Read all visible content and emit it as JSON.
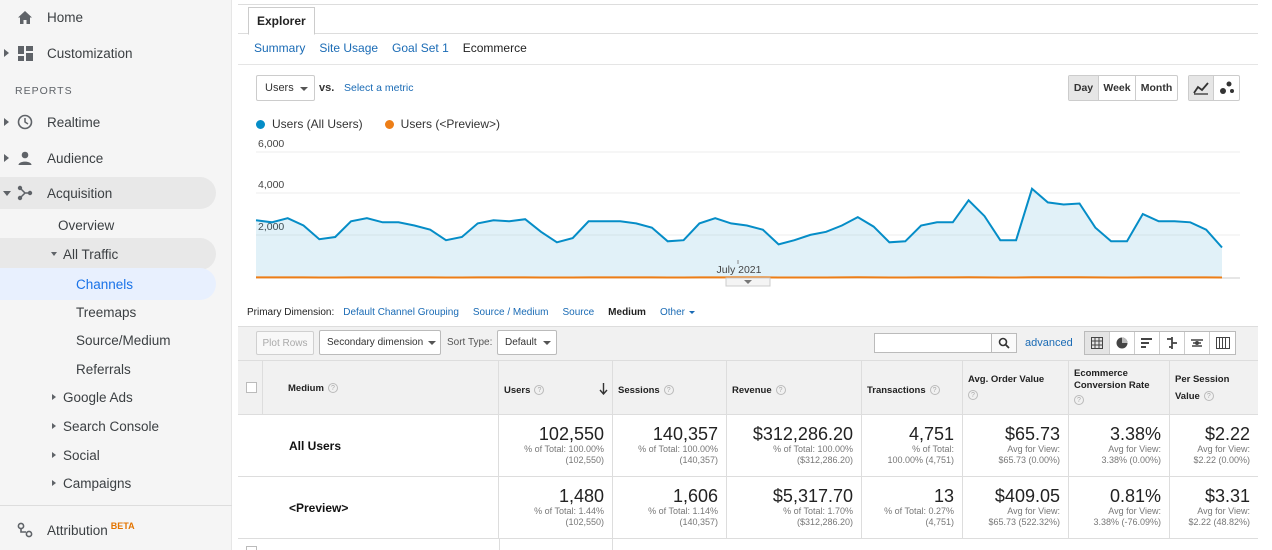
{
  "sidebar": {
    "home": "Home",
    "customization": "Customization",
    "reports_header": "REPORTS",
    "realtime": "Realtime",
    "audience": "Audience",
    "acquisition": "Acquisition",
    "overview": "Overview",
    "all_traffic": "All Traffic",
    "channels": "Channels",
    "treemaps": "Treemaps",
    "source_medium": "Source/Medium",
    "referrals": "Referrals",
    "google_ads": "Google Ads",
    "search_console": "Search Console",
    "social": "Social",
    "campaigns": "Campaigns",
    "attribution": "Attribution",
    "attribution_badge": "BETA"
  },
  "tabs": {
    "explorer": "Explorer",
    "subtabs": [
      "Summary",
      "Site Usage",
      "Goal Set 1",
      "Ecommerce"
    ]
  },
  "chart_controls": {
    "metric": "Users",
    "vs": "vs.",
    "select_metric": "Select a metric",
    "ranges": [
      "Day",
      "Week",
      "Month"
    ]
  },
  "chart_data": {
    "type": "line",
    "series": [
      {
        "name": "Users (All Users)",
        "color": "#058dc7",
        "values": [
          2750,
          2650,
          2850,
          2500,
          1850,
          1950,
          2700,
          2850,
          2650,
          2650,
          2500,
          2300,
          1800,
          1950,
          2600,
          2750,
          2700,
          2800,
          2200,
          1700,
          1900,
          2700,
          2700,
          2700,
          2600,
          2400,
          1750,
          1800,
          2600,
          2850,
          2600,
          2500,
          2300,
          1600,
          1800,
          2050,
          2200,
          2500,
          2900,
          2450,
          1700,
          1750,
          2500,
          2650,
          2650,
          3700,
          2950,
          1800,
          1800,
          4250,
          3600,
          3500,
          3550,
          2400,
          1750,
          1750,
          3050,
          2700,
          2700,
          2650,
          2300,
          1450
        ]
      },
      {
        "name": "Users (<Preview>)",
        "color": "#ed7e17",
        "values": [
          30,
          30,
          30,
          30,
          25,
          25,
          30,
          30,
          30,
          30,
          30,
          30,
          25,
          25,
          30,
          30,
          30,
          30,
          25,
          25,
          25,
          30,
          30,
          30,
          30,
          30,
          25,
          25,
          30,
          30,
          30,
          30,
          30,
          25,
          25,
          25,
          25,
          30,
          35,
          30,
          25,
          25,
          30,
          30,
          30,
          35,
          30,
          25,
          25,
          40,
          35,
          35,
          35,
          30,
          25,
          25,
          30,
          30,
          30,
          30,
          30,
          25
        ]
      }
    ],
    "y_ticks": [
      "6,000",
      "4,000",
      "2,000"
    ],
    "ylim": [
      0,
      6000
    ],
    "x_label": "July 2021"
  },
  "primary_dimension": {
    "label": "Primary Dimension:",
    "options": [
      "Default Channel Grouping",
      "Source / Medium",
      "Source"
    ],
    "current": "Medium",
    "other": "Other"
  },
  "table_toolbar": {
    "plot_rows": "Plot Rows",
    "secondary_dimension": "Secondary dimension",
    "sort_type_label": "Sort Type:",
    "sort_type": "Default",
    "search_value": "",
    "advanced": "advanced"
  },
  "table": {
    "headers": {
      "medium": "Medium",
      "users": "Users",
      "sessions": "Sessions",
      "revenue": "Revenue",
      "transactions": "Transactions",
      "aov": "Avg. Order Value",
      "ecr_1": "Ecommerce",
      "ecr_2": "Conversion Rate",
      "psv_1": "Per Session",
      "psv_2": "Value"
    },
    "rows": [
      {
        "name": "All Users",
        "users": {
          "value": "102,550",
          "s1": "% of Total: 100.00%",
          "s2": "(102,550)"
        },
        "sessions": {
          "value": "140,357",
          "s1": "% of Total: 100.00%",
          "s2": "(140,357)"
        },
        "revenue": {
          "value": "$312,286.20",
          "s1": "% of Total: 100.00%",
          "s2": "($312,286.20)"
        },
        "transactions": {
          "value": "4,751",
          "s1": "% of Total:",
          "s2": "100.00% (4,751)"
        },
        "aov": {
          "value": "$65.73",
          "s1": "Avg for View:",
          "s2": "$65.73 (0.00%)"
        },
        "ecr": {
          "value": "3.38%",
          "s1": "Avg for View:",
          "s2": "3.38% (0.00%)"
        },
        "psv": {
          "value": "$2.22",
          "s1": "Avg for View:",
          "s2": "$2.22 (0.00%)"
        }
      },
      {
        "name": "<Preview>",
        "users": {
          "value": "1,480",
          "s1": "% of Total: 1.44%",
          "s2": "(102,550)"
        },
        "sessions": {
          "value": "1,606",
          "s1": "% of Total: 1.14%",
          "s2": "(140,357)"
        },
        "revenue": {
          "value": "$5,317.70",
          "s1": "% of Total: 1.70%",
          "s2": "($312,286.20)"
        },
        "transactions": {
          "value": "13",
          "s1": "% of Total: 0.27%",
          "s2": "(4,751)"
        },
        "aov": {
          "value": "$409.05",
          "s1": "Avg for View:",
          "s2": "$65.73 (522.32%)"
        },
        "ecr": {
          "value": "0.81%",
          "s1": "Avg for View:",
          "s2": "3.38% (-76.09%)"
        },
        "psv": {
          "value": "$3.31",
          "s1": "Avg for View:",
          "s2": "$2.22 (48.82%)"
        }
      }
    ]
  }
}
